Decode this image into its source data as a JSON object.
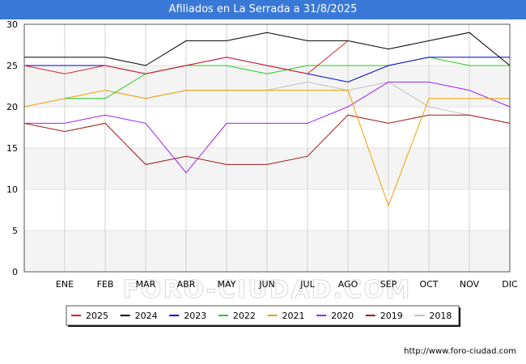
{
  "chart_data": {
    "type": "line",
    "title": "Afiliados en La Serrada a 31/8/2025",
    "xlabel": "",
    "ylabel": "",
    "categories": [
      "",
      "ENE",
      "FEB",
      "MAR",
      "ABR",
      "MAY",
      "JUN",
      "JUL",
      "AGO",
      "SEP",
      "OCT",
      "NOV",
      "DIC"
    ],
    "ylim": [
      0,
      30
    ],
    "yticks": [
      0,
      5,
      10,
      15,
      20,
      25,
      30
    ],
    "grid": true,
    "legend_position": "bottom",
    "series": [
      {
        "name": "2025",
        "color": "#e02020",
        "values": [
          25,
          24,
          25,
          24,
          25,
          26,
          25,
          24,
          28,
          null,
          null,
          null,
          null
        ]
      },
      {
        "name": "2024",
        "color": "#000000",
        "values": [
          26,
          26,
          26,
          25,
          28,
          28,
          29,
          28,
          28,
          27,
          28,
          29,
          25
        ]
      },
      {
        "name": "2023",
        "color": "#0000cc",
        "values": [
          25,
          25,
          25,
          24,
          25,
          26,
          25,
          24,
          23,
          25,
          26,
          26,
          26
        ]
      },
      {
        "name": "2022",
        "color": "#22cc22",
        "values": [
          null,
          21,
          21,
          24,
          25,
          25,
          24,
          25,
          25,
          25,
          26,
          25,
          25
        ]
      },
      {
        "name": "2021",
        "color": "#f0a000",
        "values": [
          20,
          21,
          22,
          21,
          22,
          22,
          22,
          22,
          22,
          8,
          21,
          21,
          21
        ]
      },
      {
        "name": "2020",
        "color": "#a020f0",
        "values": [
          18,
          18,
          19,
          18,
          12,
          18,
          18,
          18,
          20,
          23,
          23,
          22,
          20
        ]
      },
      {
        "name": "2019",
        "color": "#a01818",
        "values": [
          18,
          17,
          18,
          13,
          14,
          13,
          13,
          14,
          19,
          18,
          19,
          19,
          18
        ]
      },
      {
        "name": "2018",
        "color": "#c0c0c0",
        "values": [
          null,
          null,
          22,
          21,
          22,
          22,
          22,
          23,
          22,
          23,
          20,
          19,
          18
        ]
      }
    ]
  },
  "watermark": "FORO-CIUDAD.COM",
  "source": "http://www.foro-ciudad.com"
}
